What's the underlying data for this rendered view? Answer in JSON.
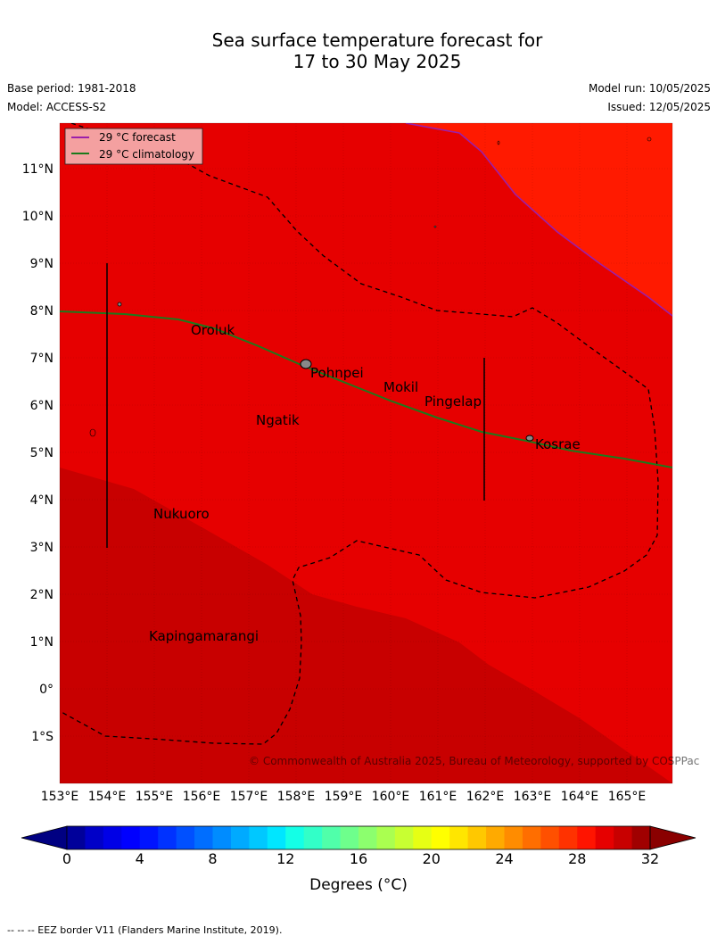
{
  "header": {
    "title_line1": "Sea surface temperature forecast for",
    "title_line2": "17 to 30 May 2025",
    "base_period": "Base period: 1981-2018",
    "model": "Model: ACCESS-S2",
    "model_run": "Model run: 10/05/2025",
    "issued": "Issued: 12/05/2025"
  },
  "legend": {
    "forecast": "29 °C  forecast",
    "climatology": "29 °C  climatology",
    "forecast_color": "#9b1faa",
    "climatology_color": "#1c7a1c"
  },
  "map": {
    "lon_ticks": [
      "153°E",
      "154°E",
      "155°E",
      "156°E",
      "157°E",
      "158°E",
      "159°E",
      "160°E",
      "161°E",
      "162°E",
      "163°E",
      "164°E",
      "165°E"
    ],
    "lat_ticks": [
      "11°N",
      "10°N",
      "9°N",
      "8°N",
      "7°N",
      "6°N",
      "5°N",
      "4°N",
      "3°N",
      "2°N",
      "1°N",
      "0°",
      "1°S"
    ],
    "places": [
      {
        "name": "Oroluk"
      },
      {
        "name": "Pohnpei"
      },
      {
        "name": "Mokil"
      },
      {
        "name": "Pingelap"
      },
      {
        "name": "Ngatik"
      },
      {
        "name": "Kosrae"
      },
      {
        "name": "Nukuoro"
      },
      {
        "name": "Kapingamarangi"
      }
    ],
    "copyright": "© Commonwealth of Australia 2025, Bureau of Meteorology, supported by COSPPac",
    "colors": {
      "hot": "#ff1a00",
      "warm": "#e60000",
      "warmer": "#c80000"
    }
  },
  "colorbar": {
    "tick_labels": [
      "0",
      "4",
      "8",
      "12",
      "16",
      "20",
      "24",
      "28",
      "32"
    ],
    "label": "Degrees (°C)",
    "colors": [
      "#00009a",
      "#0000c8",
      "#0000e6",
      "#0000ff",
      "#0014ff",
      "#0032ff",
      "#0050ff",
      "#006eff",
      "#008cff",
      "#00aaff",
      "#00c8ff",
      "#00e6ff",
      "#14ffe6",
      "#32ffc8",
      "#50ffaa",
      "#6eff8c",
      "#8cff6e",
      "#aaff50",
      "#c8ff32",
      "#e6ff14",
      "#ffff00",
      "#ffe600",
      "#ffc800",
      "#ffaa00",
      "#ff8c00",
      "#ff6e00",
      "#ff5000",
      "#ff3200",
      "#ff1400",
      "#e60000",
      "#c80000",
      "#a00000"
    ]
  },
  "footer": {
    "eez_note": "--  --  -- EEZ border V11 (Flanders Marine Institute, 2019)."
  }
}
